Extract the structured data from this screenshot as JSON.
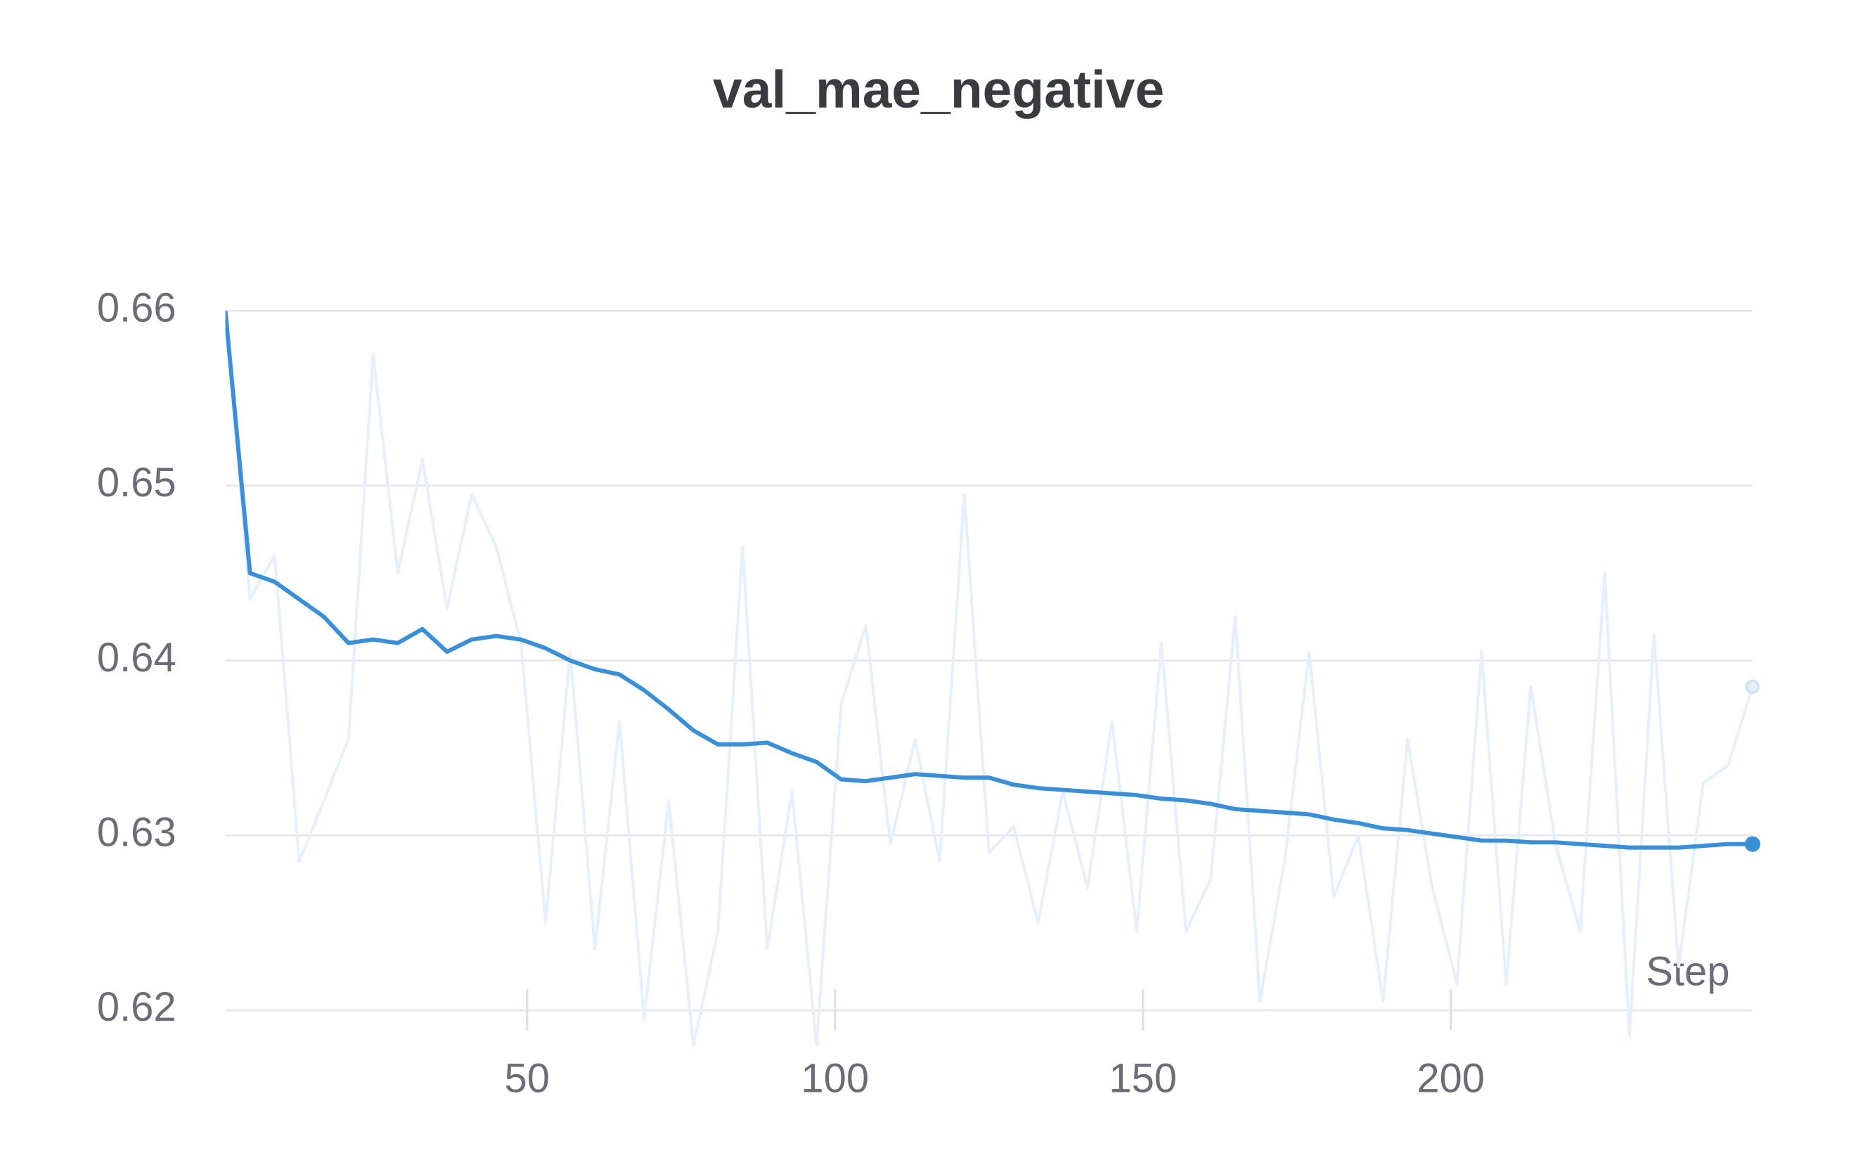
{
  "chart_data": {
    "type": "line",
    "title": "val_mae_negative",
    "x_label": "Step",
    "x": [
      1,
      5,
      9,
      13,
      17,
      21,
      25,
      29,
      33,
      37,
      41,
      45,
      49,
      53,
      57,
      61,
      65,
      69,
      73,
      77,
      81,
      85,
      89,
      93,
      97,
      101,
      105,
      109,
      113,
      117,
      121,
      125,
      129,
      133,
      137,
      141,
      145,
      149,
      153,
      157,
      161,
      165,
      169,
      173,
      177,
      181,
      185,
      189,
      193,
      197,
      201,
      205,
      209,
      213,
      217,
      221,
      225,
      229,
      233,
      237,
      241,
      245,
      249
    ],
    "series": [
      {
        "color": "#e6f0fa",
        "values": [
          0.66,
          0.6435,
          0.646,
          0.6285,
          0.632,
          0.6355,
          0.6575,
          0.645,
          0.6515,
          0.643,
          0.6495,
          0.6465,
          0.641,
          0.625,
          0.6405,
          0.6235,
          0.6365,
          0.6195,
          0.632,
          0.618,
          0.6245,
          0.6465,
          0.6235,
          0.6325,
          0.618,
          0.6375,
          0.642,
          0.6295,
          0.6355,
          0.6285,
          0.6495,
          0.629,
          0.6305,
          0.625,
          0.6325,
          0.627,
          0.6365,
          0.6245,
          0.641,
          0.6245,
          0.6275,
          0.6425,
          0.6205,
          0.6285,
          0.6405,
          0.6265,
          0.63,
          0.6205,
          0.6355,
          0.627,
          0.6215,
          0.6405,
          0.6215,
          0.6385,
          0.6295,
          0.6245,
          0.645,
          0.6185,
          0.6415,
          0.6225,
          0.633,
          0.634,
          0.6385
        ]
      },
      {
        "color": "#3a8fd9",
        "values": [
          0.66,
          0.645,
          0.6445,
          0.6435,
          0.6425,
          0.641,
          0.6412,
          0.641,
          0.6418,
          0.6405,
          0.6412,
          0.6414,
          0.6412,
          0.6407,
          0.64,
          0.6395,
          0.6392,
          0.6383,
          0.6372,
          0.636,
          0.6352,
          0.6352,
          0.6353,
          0.6347,
          0.6342,
          0.6332,
          0.6331,
          0.6333,
          0.6335,
          0.6334,
          0.6333,
          0.6333,
          0.6329,
          0.6327,
          0.6326,
          0.6325,
          0.6324,
          0.6323,
          0.6321,
          0.632,
          0.6318,
          0.6315,
          0.6314,
          0.6313,
          0.6312,
          0.6309,
          0.6307,
          0.6304,
          0.6303,
          0.6301,
          0.6299,
          0.6297,
          0.6297,
          0.6296,
          0.6296,
          0.6295,
          0.6294,
          0.6293,
          0.6293,
          0.6293,
          0.6294,
          0.6295,
          0.6295
        ]
      }
    ],
    "xlim": [
      1,
      249
    ],
    "xticks": [
      50,
      100,
      150,
      200
    ],
    "ylim": [
      0.6171,
      0.669
    ],
    "yticks": [
      0.62,
      0.63,
      0.64,
      0.65,
      0.66
    ],
    "grid": true
  }
}
